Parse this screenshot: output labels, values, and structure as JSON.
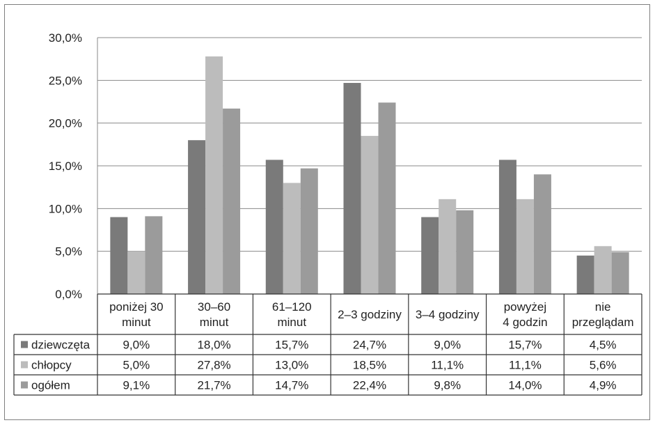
{
  "chart_data": {
    "type": "bar",
    "categories": [
      [
        "poniżej 30",
        "minut"
      ],
      [
        "30–60",
        "minut"
      ],
      [
        "61–120",
        "minut"
      ],
      [
        "2–3 godziny"
      ],
      [
        "3–4 godziny"
      ],
      [
        "powyżej",
        "4 godzin"
      ],
      [
        "nie",
        "przeglądam"
      ]
    ],
    "series": [
      {
        "name": "dziewczęta",
        "color": "#7a7a7a",
        "values": [
          9.0,
          18.0,
          15.7,
          24.7,
          9.0,
          15.7,
          4.5
        ],
        "labels": [
          "9,0%",
          "18,0%",
          "15,7%",
          "24,7%",
          "9,0%",
          "15,7%",
          "4,5%"
        ]
      },
      {
        "name": "chłopcy",
        "color": "#bcbcbc",
        "values": [
          5.0,
          27.8,
          13.0,
          18.5,
          11.1,
          11.1,
          5.6
        ],
        "labels": [
          "5,0%",
          "27,8%",
          "13,0%",
          "18,5%",
          "11,1%",
          "11,1%",
          "5,6%"
        ]
      },
      {
        "name": "ogółem",
        "color": "#9b9b9b",
        "values": [
          9.1,
          21.7,
          14.7,
          22.4,
          9.8,
          14.0,
          4.9
        ],
        "labels": [
          "9,1%",
          "21,7%",
          "14,7%",
          "22,4%",
          "9,8%",
          "14,0%",
          "4,9%"
        ]
      }
    ],
    "ylim": [
      0,
      30
    ],
    "yticks": [
      0,
      5,
      10,
      15,
      20,
      25,
      30
    ],
    "ytick_labels": [
      "0,0%",
      "5,0%",
      "10,0%",
      "15,0%",
      "20,0%",
      "25,0%",
      "30,0%"
    ],
    "grid": true,
    "legend": "data-table-left"
  }
}
